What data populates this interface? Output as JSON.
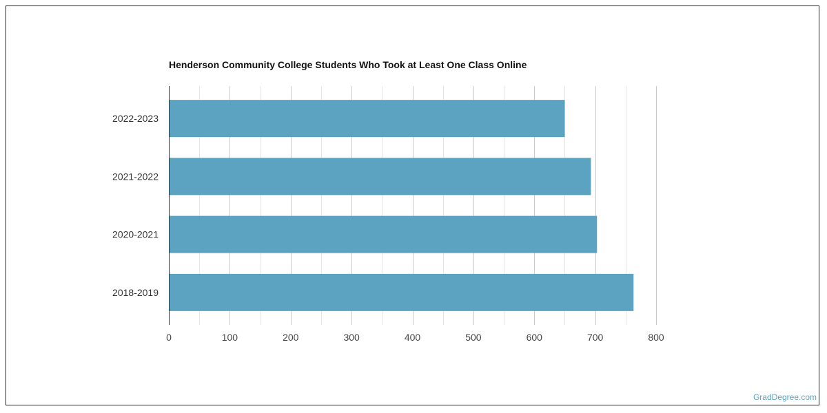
{
  "chart_data": {
    "type": "bar",
    "orientation": "horizontal",
    "title": "Henderson Community College Students Who Took at Least One Class Online",
    "categories": [
      "2022-2023",
      "2021-2022",
      "2020-2021",
      "2018-2019"
    ],
    "values": [
      650,
      693,
      703,
      763
    ],
    "xlim": [
      0,
      800
    ],
    "xticks": [
      "0",
      "100",
      "200",
      "300",
      "400",
      "500",
      "600",
      "700",
      "800"
    ],
    "grid": true,
    "bar_color": "#5ba3c0"
  },
  "watermark": "GradDegree.com"
}
